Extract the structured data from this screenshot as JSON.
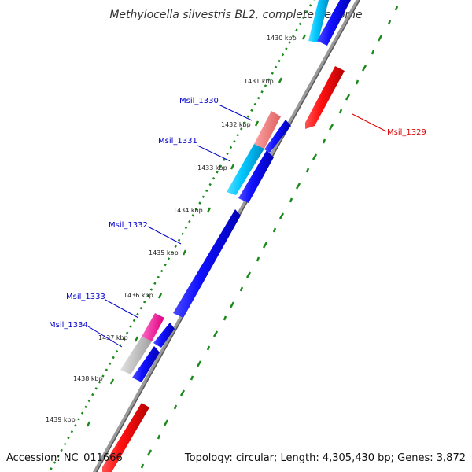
{
  "title": "Methylocella silvestris BL2, complete genome",
  "footer": {
    "accession": "Accession: NC_011666",
    "summary": "Topology: circular; Length: 4,305,430 bp; Genes: 3,872"
  },
  "colors": {
    "forward": "#1010ff",
    "reverse": "#ff1010",
    "cyan": "#00c8ff",
    "salmon": "#f07070",
    "magenta": "#ff1aa0",
    "gray": "#bbbbbb",
    "backbone": "#888888",
    "ticks": "#1a8a1a",
    "label_blue": "#0000cc",
    "label_red": "#dd0000"
  },
  "ruler": [
    "1430 kbp",
    "1431 kbp",
    "1432 kbp",
    "1433 kbp",
    "1434 kbp",
    "1435 kbp",
    "1436 kbp",
    "1437 kbp",
    "1438 kbp",
    "1439 kbp"
  ],
  "gene_labels": [
    {
      "text": "Msil_1330",
      "color": "blue"
    },
    {
      "text": "Msil_1331",
      "color": "blue"
    },
    {
      "text": "Msil_1332",
      "color": "blue"
    },
    {
      "text": "Msil_1333",
      "color": "blue"
    },
    {
      "text": "Msil_1334",
      "color": "blue"
    },
    {
      "text": "Msil_1329",
      "color": "red"
    }
  ]
}
